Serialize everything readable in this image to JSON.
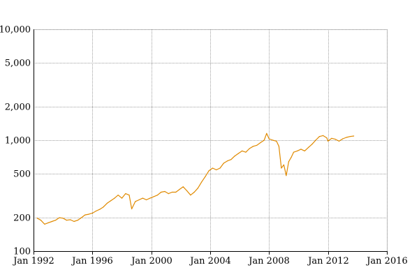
{
  "chart_data": {
    "type": "line",
    "title": "",
    "xlabel": "",
    "ylabel": "",
    "y_scale": "log",
    "ylim": [
      100,
      10000
    ],
    "xlim": [
      "1992-01",
      "2016-01"
    ],
    "grid": true,
    "legend": "none",
    "x_tick_labels": [
      "Jan 1992",
      "Jan 1996",
      "Jan 2000",
      "Jan 2004",
      "Jan 2008",
      "Jan 2012",
      "Jan 2016"
    ],
    "x_tick_values": [
      "1992-01",
      "1996-01",
      "2000-01",
      "2004-01",
      "2008-01",
      "2012-01",
      "2016-01"
    ],
    "y_tick_labels": [
      "100",
      "200",
      "500",
      "1,000",
      "2,000",
      "5,000",
      "10,000"
    ],
    "y_tick_values": [
      100,
      200,
      500,
      1000,
      2000,
      5000,
      10000
    ],
    "series": [
      {
        "color": "#e08a00",
        "points": [
          [
            "1992-04",
            198
          ],
          [
            "1992-07",
            190
          ],
          [
            "1992-10",
            175
          ],
          [
            "1993-01",
            180
          ],
          [
            "1993-04",
            185
          ],
          [
            "1993-07",
            190
          ],
          [
            "1993-10",
            200
          ],
          [
            "1994-01",
            198
          ],
          [
            "1994-04",
            190
          ],
          [
            "1994-07",
            192
          ],
          [
            "1994-10",
            185
          ],
          [
            "1995-01",
            190
          ],
          [
            "1995-04",
            200
          ],
          [
            "1995-07",
            212
          ],
          [
            "1995-10",
            215
          ],
          [
            "1996-01",
            220
          ],
          [
            "1996-04",
            230
          ],
          [
            "1996-07",
            238
          ],
          [
            "1996-10",
            250
          ],
          [
            "1997-01",
            270
          ],
          [
            "1997-04",
            285
          ],
          [
            "1997-07",
            300
          ],
          [
            "1997-10",
            320
          ],
          [
            "1998-01",
            300
          ],
          [
            "1998-04",
            330
          ],
          [
            "1998-07",
            320
          ],
          [
            "1998-09",
            240
          ],
          [
            "1998-12",
            280
          ],
          [
            "1999-03",
            290
          ],
          [
            "1999-06",
            300
          ],
          [
            "1999-09",
            290
          ],
          [
            "1999-12",
            300
          ],
          [
            "2000-03",
            310
          ],
          [
            "2000-06",
            320
          ],
          [
            "2000-09",
            340
          ],
          [
            "2000-12",
            345
          ],
          [
            "2001-03",
            330
          ],
          [
            "2001-06",
            340
          ],
          [
            "2001-09",
            340
          ],
          [
            "2001-12",
            360
          ],
          [
            "2002-03",
            380
          ],
          [
            "2002-06",
            350
          ],
          [
            "2002-09",
            320
          ],
          [
            "2002-12",
            340
          ],
          [
            "2003-03",
            370
          ],
          [
            "2003-06",
            420
          ],
          [
            "2003-09",
            470
          ],
          [
            "2003-12",
            530
          ],
          [
            "2004-03",
            560
          ],
          [
            "2004-06",
            540
          ],
          [
            "2004-09",
            560
          ],
          [
            "2004-12",
            620
          ],
          [
            "2005-03",
            650
          ],
          [
            "2005-06",
            670
          ],
          [
            "2005-09",
            720
          ],
          [
            "2005-12",
            760
          ],
          [
            "2006-03",
            800
          ],
          [
            "2006-06",
            780
          ],
          [
            "2006-09",
            840
          ],
          [
            "2006-12",
            880
          ],
          [
            "2007-03",
            900
          ],
          [
            "2007-06",
            950
          ],
          [
            "2007-09",
            1000
          ],
          [
            "2007-11",
            1150
          ],
          [
            "2008-01",
            1030
          ],
          [
            "2008-04",
            1000
          ],
          [
            "2008-07",
            980
          ],
          [
            "2008-09",
            880
          ],
          [
            "2008-11",
            560
          ],
          [
            "2009-01",
            600
          ],
          [
            "2009-03",
            480
          ],
          [
            "2009-05",
            640
          ],
          [
            "2009-07",
            700
          ],
          [
            "2009-09",
            780
          ],
          [
            "2009-12",
            800
          ],
          [
            "2010-03",
            830
          ],
          [
            "2010-06",
            800
          ],
          [
            "2010-09",
            860
          ],
          [
            "2010-12",
            920
          ],
          [
            "2011-03",
            1000
          ],
          [
            "2011-06",
            1080
          ],
          [
            "2011-09",
            1100
          ],
          [
            "2011-12",
            1050
          ],
          [
            "2012-01",
            980
          ],
          [
            "2012-04",
            1040
          ],
          [
            "2012-07",
            1020
          ],
          [
            "2012-10",
            980
          ],
          [
            "2013-01",
            1030
          ],
          [
            "2013-04",
            1060
          ],
          [
            "2013-07",
            1080
          ],
          [
            "2013-10",
            1090
          ]
        ]
      }
    ]
  }
}
